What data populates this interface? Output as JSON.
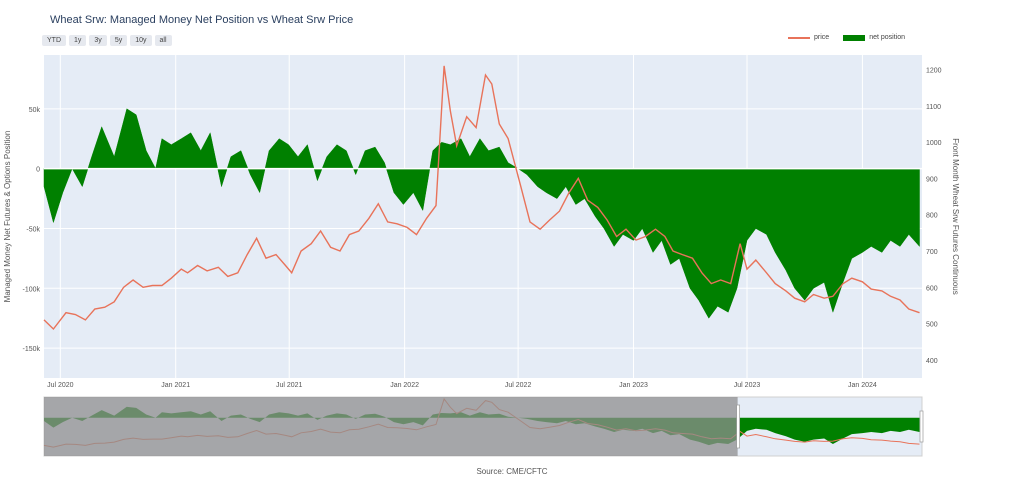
{
  "title": "Wheat Srw: Managed Money Net Position vs Wheat Srw Price",
  "range_buttons": [
    "YTD",
    "1y",
    "3y",
    "5y",
    "10y",
    "all"
  ],
  "source": "Source: CME/CFTC",
  "colors": {
    "price": "#e8735a",
    "net_position": "#008000",
    "plot_bg": "#e5ecf6",
    "grid": "#ffffff",
    "selector_shade": "#8f8f8f"
  },
  "chart_data": {
    "type": "line+area",
    "title": "Wheat Srw: Managed Money Net Position vs Wheat Srw Price",
    "legend_position": "top-right",
    "y_left": {
      "label": "Managed Money Net Futures & Options Position",
      "range": [
        -175000,
        95000
      ],
      "ticks": [
        50000,
        0,
        -50000,
        -100000,
        -150000
      ],
      "tick_labels": [
        "50k",
        "0",
        "-50k",
        "-100k",
        "-150k"
      ]
    },
    "y_right": {
      "label": "Front Month Wheat Srw Futures Continuous",
      "range": [
        350,
        1240
      ],
      "ticks": [
        400,
        500,
        600,
        700,
        800,
        900,
        1000,
        1100,
        1200
      ],
      "tick_labels": [
        "400",
        "500",
        "600",
        "700",
        "800",
        "900",
        "1000",
        "1100",
        "1200"
      ]
    },
    "x_range": [
      "2020-06-05",
      "2024-04-05"
    ],
    "x_ticks": [
      "2020-07-01",
      "2021-01-01",
      "2021-07-01",
      "2022-01-01",
      "2022-07-01",
      "2023-01-01",
      "2023-07-01",
      "2024-01-01"
    ],
    "x_tick_labels": [
      "Jul 2020",
      "Jan 2021",
      "Jul 2021",
      "Jan 2022",
      "Jul 2022",
      "Jan 2023",
      "Jul 2023",
      "Jan 2024"
    ],
    "grid": true,
    "series": [
      {
        "name": "price",
        "kind": "line",
        "axis": "right",
        "points": [
          [
            "2020-06-05",
            510
          ],
          [
            "2020-06-20",
            485
          ],
          [
            "2020-07-10",
            530
          ],
          [
            "2020-07-25",
            525
          ],
          [
            "2020-08-10",
            510
          ],
          [
            "2020-08-25",
            540
          ],
          [
            "2020-09-10",
            545
          ],
          [
            "2020-09-25",
            560
          ],
          [
            "2020-10-10",
            600
          ],
          [
            "2020-10-25",
            620
          ],
          [
            "2020-11-10",
            600
          ],
          [
            "2020-11-25",
            605
          ],
          [
            "2020-12-10",
            605
          ],
          [
            "2020-12-25",
            625
          ],
          [
            "2021-01-10",
            650
          ],
          [
            "2021-01-20",
            640
          ],
          [
            "2021-02-05",
            660
          ],
          [
            "2021-02-20",
            645
          ],
          [
            "2021-03-10",
            655
          ],
          [
            "2021-03-25",
            630
          ],
          [
            "2021-04-10",
            640
          ],
          [
            "2021-04-25",
            690
          ],
          [
            "2021-05-10",
            735
          ],
          [
            "2021-05-25",
            680
          ],
          [
            "2021-06-10",
            690
          ],
          [
            "2021-06-25",
            660
          ],
          [
            "2021-07-05",
            640
          ],
          [
            "2021-07-20",
            700
          ],
          [
            "2021-08-05",
            720
          ],
          [
            "2021-08-20",
            755
          ],
          [
            "2021-09-05",
            710
          ],
          [
            "2021-09-20",
            700
          ],
          [
            "2021-10-05",
            745
          ],
          [
            "2021-10-20",
            755
          ],
          [
            "2021-11-05",
            790
          ],
          [
            "2021-11-20",
            830
          ],
          [
            "2021-12-05",
            780
          ],
          [
            "2021-12-20",
            775
          ],
          [
            "2022-01-05",
            765
          ],
          [
            "2022-01-20",
            745
          ],
          [
            "2022-02-05",
            790
          ],
          [
            "2022-02-20",
            825
          ],
          [
            "2022-03-05",
            1210
          ],
          [
            "2022-03-15",
            1085
          ],
          [
            "2022-03-25",
            990
          ],
          [
            "2022-04-10",
            1070
          ],
          [
            "2022-04-25",
            1040
          ],
          [
            "2022-05-10",
            1185
          ],
          [
            "2022-05-20",
            1160
          ],
          [
            "2022-06-01",
            1050
          ],
          [
            "2022-06-15",
            1010
          ],
          [
            "2022-07-05",
            880
          ],
          [
            "2022-07-20",
            780
          ],
          [
            "2022-08-05",
            760
          ],
          [
            "2022-08-20",
            785
          ],
          [
            "2022-09-05",
            810
          ],
          [
            "2022-09-20",
            860
          ],
          [
            "2022-10-05",
            900
          ],
          [
            "2022-10-20",
            840
          ],
          [
            "2022-11-05",
            820
          ],
          [
            "2022-11-20",
            785
          ],
          [
            "2022-12-05",
            740
          ],
          [
            "2022-12-20",
            760
          ],
          [
            "2023-01-05",
            730
          ],
          [
            "2023-01-20",
            740
          ],
          [
            "2023-02-05",
            760
          ],
          [
            "2023-02-20",
            740
          ],
          [
            "2023-03-05",
            700
          ],
          [
            "2023-03-20",
            690
          ],
          [
            "2023-04-05",
            680
          ],
          [
            "2023-04-20",
            640
          ],
          [
            "2023-05-05",
            610
          ],
          [
            "2023-05-20",
            620
          ],
          [
            "2023-06-05",
            610
          ],
          [
            "2023-06-20",
            720
          ],
          [
            "2023-07-01",
            650
          ],
          [
            "2023-07-15",
            675
          ],
          [
            "2023-08-01",
            640
          ],
          [
            "2023-08-15",
            610
          ],
          [
            "2023-09-01",
            590
          ],
          [
            "2023-09-15",
            570
          ],
          [
            "2023-10-01",
            560
          ],
          [
            "2023-10-15",
            580
          ],
          [
            "2023-11-01",
            570
          ],
          [
            "2023-11-15",
            575
          ],
          [
            "2023-12-01",
            610
          ],
          [
            "2023-12-15",
            625
          ],
          [
            "2024-01-01",
            615
          ],
          [
            "2024-01-15",
            595
          ],
          [
            "2024-02-01",
            590
          ],
          [
            "2024-02-15",
            575
          ],
          [
            "2024-03-01",
            565
          ],
          [
            "2024-03-15",
            540
          ],
          [
            "2024-04-01",
            530
          ]
        ]
      },
      {
        "name": "net position",
        "kind": "area",
        "axis": "left",
        "points": [
          [
            "2020-06-05",
            -15000
          ],
          [
            "2020-06-20",
            -45000
          ],
          [
            "2020-07-05",
            -20000
          ],
          [
            "2020-07-20",
            0
          ],
          [
            "2020-08-05",
            -15000
          ],
          [
            "2020-08-20",
            10000
          ],
          [
            "2020-09-05",
            35000
          ],
          [
            "2020-09-25",
            10000
          ],
          [
            "2020-10-15",
            50000
          ],
          [
            "2020-10-30",
            45000
          ],
          [
            "2020-11-15",
            15000
          ],
          [
            "2020-11-30",
            0
          ],
          [
            "2020-12-10",
            25000
          ],
          [
            "2020-12-25",
            20000
          ],
          [
            "2021-01-10",
            25000
          ],
          [
            "2021-01-25",
            30000
          ],
          [
            "2021-02-10",
            15000
          ],
          [
            "2021-02-25",
            30000
          ],
          [
            "2021-03-15",
            -15000
          ],
          [
            "2021-03-30",
            10000
          ],
          [
            "2021-04-15",
            15000
          ],
          [
            "2021-04-30",
            -5000
          ],
          [
            "2021-05-15",
            -20000
          ],
          [
            "2021-05-30",
            15000
          ],
          [
            "2021-06-15",
            25000
          ],
          [
            "2021-06-30",
            20000
          ],
          [
            "2021-07-15",
            10000
          ],
          [
            "2021-07-30",
            20000
          ],
          [
            "2021-08-15",
            -10000
          ],
          [
            "2021-08-30",
            10000
          ],
          [
            "2021-09-15",
            20000
          ],
          [
            "2021-09-30",
            15000
          ],
          [
            "2021-10-15",
            -5000
          ],
          [
            "2021-10-30",
            15000
          ],
          [
            "2021-11-15",
            18000
          ],
          [
            "2021-11-30",
            5000
          ],
          [
            "2021-12-15",
            -20000
          ],
          [
            "2021-12-30",
            -30000
          ],
          [
            "2022-01-15",
            -20000
          ],
          [
            "2022-01-30",
            -35000
          ],
          [
            "2022-02-15",
            15000
          ],
          [
            "2022-03-01",
            22000
          ],
          [
            "2022-03-15",
            20000
          ],
          [
            "2022-04-01",
            25000
          ],
          [
            "2022-04-15",
            10000
          ],
          [
            "2022-05-01",
            25000
          ],
          [
            "2022-05-15",
            15000
          ],
          [
            "2022-06-01",
            18000
          ],
          [
            "2022-06-15",
            5000
          ],
          [
            "2022-07-01",
            0
          ],
          [
            "2022-07-15",
            -5000
          ],
          [
            "2022-08-01",
            -15000
          ],
          [
            "2022-08-15",
            -20000
          ],
          [
            "2022-09-01",
            -25000
          ],
          [
            "2022-09-15",
            -15000
          ],
          [
            "2022-10-01",
            -30000
          ],
          [
            "2022-10-15",
            -25000
          ],
          [
            "2022-11-01",
            -40000
          ],
          [
            "2022-11-15",
            -50000
          ],
          [
            "2022-12-01",
            -65000
          ],
          [
            "2022-12-15",
            -55000
          ],
          [
            "2023-01-01",
            -60000
          ],
          [
            "2023-01-15",
            -50000
          ],
          [
            "2023-02-01",
            -70000
          ],
          [
            "2023-02-15",
            -60000
          ],
          [
            "2023-03-01",
            -80000
          ],
          [
            "2023-03-15",
            -75000
          ],
          [
            "2023-04-01",
            -100000
          ],
          [
            "2023-04-15",
            -110000
          ],
          [
            "2023-05-01",
            -125000
          ],
          [
            "2023-05-15",
            -115000
          ],
          [
            "2023-06-01",
            -120000
          ],
          [
            "2023-06-15",
            -100000
          ],
          [
            "2023-07-01",
            -60000
          ],
          [
            "2023-07-15",
            -50000
          ],
          [
            "2023-08-01",
            -55000
          ],
          [
            "2023-08-15",
            -70000
          ],
          [
            "2023-09-01",
            -85000
          ],
          [
            "2023-09-15",
            -100000
          ],
          [
            "2023-10-01",
            -110000
          ],
          [
            "2023-10-15",
            -100000
          ],
          [
            "2023-11-01",
            -95000
          ],
          [
            "2023-11-15",
            -120000
          ],
          [
            "2023-12-01",
            -95000
          ],
          [
            "2023-12-15",
            -75000
          ],
          [
            "2024-01-01",
            -70000
          ],
          [
            "2024-01-15",
            -65000
          ],
          [
            "2024-02-01",
            -70000
          ],
          [
            "2024-02-15",
            -60000
          ],
          [
            "2024-03-01",
            -65000
          ],
          [
            "2024-03-15",
            -55000
          ],
          [
            "2024-04-01",
            -65000
          ]
        ]
      }
    ]
  }
}
